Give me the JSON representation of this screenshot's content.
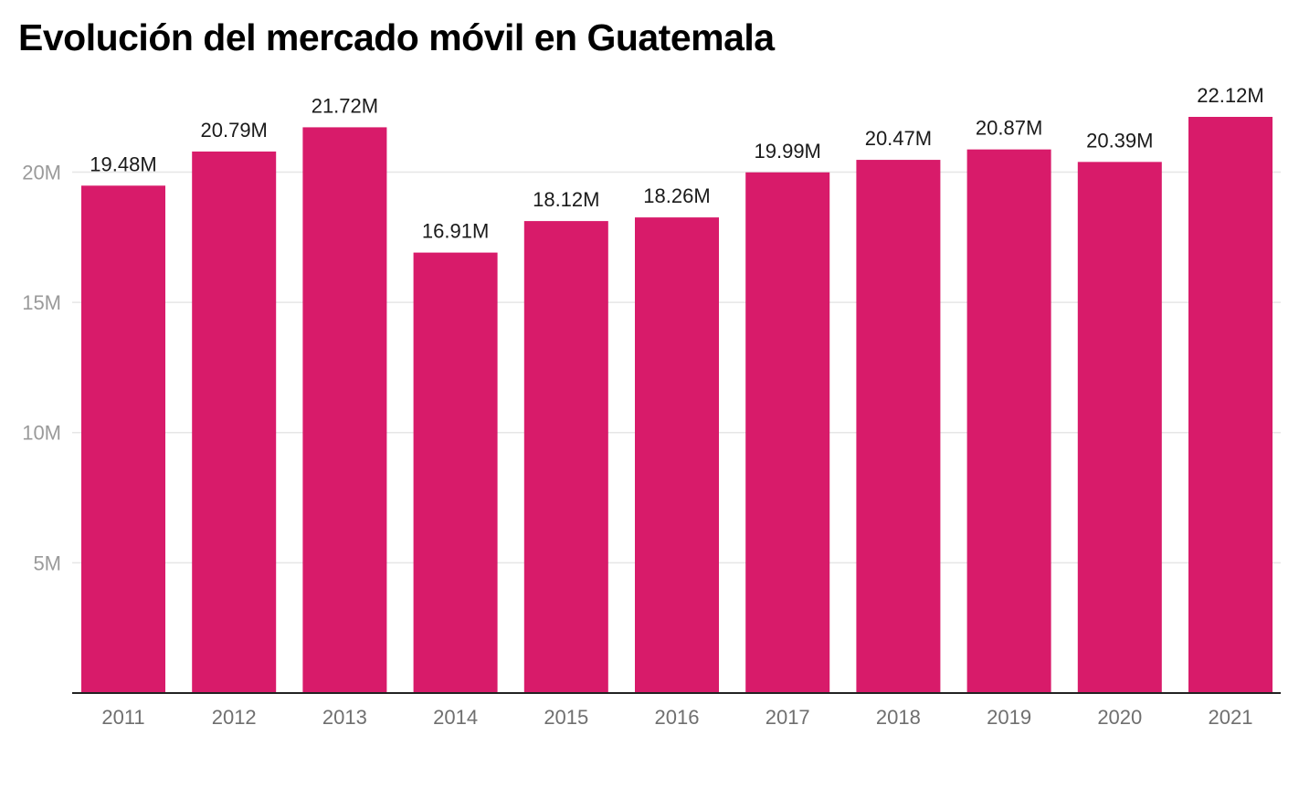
{
  "chart_data": {
    "type": "bar",
    "title": "Evolución del mercado móvil en Guatemala",
    "xlabel": "",
    "ylabel": "",
    "categories": [
      "2011",
      "2012",
      "2013",
      "2014",
      "2015",
      "2016",
      "2017",
      "2018",
      "2019",
      "2020",
      "2021"
    ],
    "values": [
      19.48,
      20.79,
      21.72,
      16.91,
      18.12,
      18.26,
      19.99,
      20.47,
      20.87,
      20.39,
      22.12
    ],
    "data_labels": [
      "19.48M",
      "20.79M",
      "21.72M",
      "16.91M",
      "18.12M",
      "18.26M",
      "19.99M",
      "20.47M",
      "20.87M",
      "20.39M",
      "22.12M"
    ],
    "unit": "millones",
    "ylim": [
      0,
      22.12
    ],
    "yticks": [
      5,
      10,
      15,
      20
    ],
    "ytick_labels": [
      "5M",
      "10M",
      "15M",
      "20M"
    ],
    "grid": true,
    "legend": "none",
    "bar_color": "#d81b6a"
  }
}
